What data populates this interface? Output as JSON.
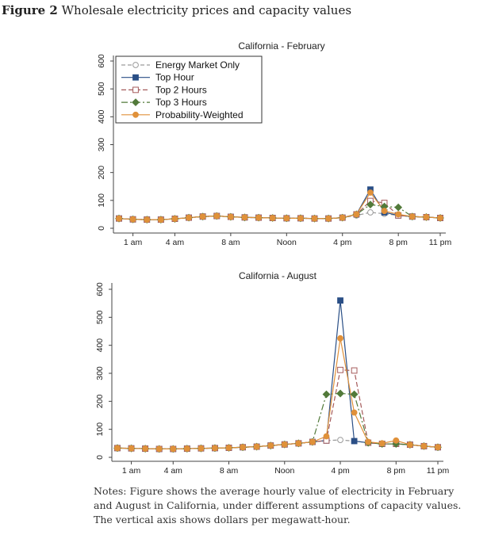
{
  "figure": {
    "label": "Figure 2",
    "title": "Wholesale electricity prices and capacity values"
  },
  "notes": "Notes: Figure shows the average hourly value of electricity in February and August in California, under different assumptions of capacity values. The vertical axis shows dollars per megawatt-hour.",
  "colors": {
    "energy": "#9a9a9a",
    "top1": "#2a4f86",
    "top2": "#a55b5b",
    "top3": "#527a3a",
    "prob": "#e0913a",
    "axis": "#444444"
  },
  "chart_data": [
    {
      "type": "line",
      "title": "California - February",
      "xlabel": "",
      "ylabel": "",
      "x": [
        1,
        2,
        3,
        4,
        5,
        6,
        7,
        8,
        9,
        10,
        11,
        12,
        13,
        14,
        15,
        16,
        17,
        18,
        19,
        20,
        21,
        22,
        23,
        24
      ],
      "x_ticks": [
        {
          "x": 2,
          "label": "1 am"
        },
        {
          "x": 5,
          "label": "4 am"
        },
        {
          "x": 9,
          "label": "8 am"
        },
        {
          "x": 13,
          "label": "Noon"
        },
        {
          "x": 17,
          "label": "4 pm"
        },
        {
          "x": 21,
          "label": "8 pm"
        },
        {
          "x": 24,
          "label": "11 pm"
        }
      ],
      "y_ticks": [
        0,
        100,
        200,
        300,
        400,
        500,
        600
      ],
      "ylim": [
        0,
        600
      ],
      "legend": "top-left",
      "series": [
        {
          "name": "Energy Market Only",
          "key": "energy",
          "marker": "circle-open",
          "values": [
            35,
            32,
            31,
            31,
            34,
            38,
            42,
            44,
            41,
            39,
            38,
            37,
            36,
            36,
            35,
            35,
            38,
            46,
            57,
            52,
            46,
            42,
            40,
            37
          ]
        },
        {
          "name": "Top Hour",
          "key": "top1",
          "marker": "square",
          "values": [
            35,
            32,
            31,
            31,
            34,
            38,
            42,
            44,
            41,
            39,
            38,
            37,
            36,
            36,
            35,
            35,
            38,
            50,
            139,
            57,
            46,
            42,
            40,
            37
          ]
        },
        {
          "name": "Top 2 Hours",
          "key": "top2",
          "marker": "square-open",
          "values": [
            35,
            32,
            31,
            31,
            34,
            38,
            42,
            44,
            41,
            39,
            38,
            37,
            36,
            36,
            35,
            35,
            38,
            50,
            98,
            91,
            46,
            42,
            40,
            37
          ]
        },
        {
          "name": "Top 3 Hours",
          "key": "top3",
          "marker": "diamond",
          "values": [
            35,
            32,
            31,
            31,
            34,
            38,
            42,
            44,
            41,
            39,
            38,
            37,
            36,
            36,
            35,
            35,
            38,
            50,
            85,
            78,
            75,
            42,
            40,
            37
          ]
        },
        {
          "name": "Probability-Weighted",
          "key": "prob",
          "marker": "circle",
          "values": [
            35,
            32,
            31,
            31,
            34,
            38,
            42,
            44,
            41,
            39,
            38,
            37,
            36,
            36,
            35,
            35,
            38,
            50,
            128,
            62,
            50,
            42,
            40,
            37
          ]
        }
      ]
    },
    {
      "type": "line",
      "title": "California - August",
      "xlabel": "",
      "ylabel": "",
      "x": [
        1,
        2,
        3,
        4,
        5,
        6,
        7,
        8,
        9,
        10,
        11,
        12,
        13,
        14,
        15,
        16,
        17,
        18,
        19,
        20,
        21,
        22,
        23,
        24
      ],
      "x_ticks": [
        {
          "x": 2,
          "label": "1 am"
        },
        {
          "x": 5,
          "label": "4 am"
        },
        {
          "x": 9,
          "label": "8 am"
        },
        {
          "x": 13,
          "label": "Noon"
        },
        {
          "x": 17,
          "label": "4 pm"
        },
        {
          "x": 21,
          "label": "8 pm"
        },
        {
          "x": 24,
          "label": "11 pm"
        }
      ],
      "y_ticks": [
        0,
        100,
        200,
        300,
        400,
        500,
        600
      ],
      "ylim": [
        0,
        600
      ],
      "series": [
        {
          "name": "Energy Market Only",
          "key": "energy",
          "marker": "circle-open",
          "values": [
            33,
            32,
            31,
            30,
            30,
            31,
            32,
            33,
            34,
            36,
            38,
            42,
            46,
            50,
            55,
            60,
            62,
            58,
            52,
            48,
            48,
            45,
            40,
            36
          ]
        },
        {
          "name": "Top Hour",
          "key": "top1",
          "marker": "square",
          "values": [
            33,
            32,
            31,
            30,
            30,
            31,
            32,
            33,
            34,
            36,
            38,
            42,
            46,
            50,
            55,
            60,
            560,
            58,
            52,
            48,
            48,
            45,
            40,
            36
          ]
        },
        {
          "name": "Top 2 Hours",
          "key": "top2",
          "marker": "square-open",
          "values": [
            33,
            32,
            31,
            30,
            30,
            31,
            32,
            33,
            34,
            36,
            38,
            42,
            46,
            50,
            55,
            60,
            312,
            310,
            52,
            48,
            48,
            45,
            40,
            36
          ]
        },
        {
          "name": "Top 3 Hours",
          "key": "top3",
          "marker": "diamond",
          "values": [
            33,
            32,
            31,
            30,
            30,
            31,
            32,
            33,
            34,
            36,
            38,
            42,
            46,
            50,
            55,
            225,
            228,
            225,
            52,
            48,
            48,
            45,
            40,
            36
          ]
        },
        {
          "name": "Probability-Weighted",
          "key": "prob",
          "marker": "circle",
          "values": [
            33,
            32,
            31,
            30,
            30,
            31,
            32,
            33,
            34,
            36,
            38,
            42,
            46,
            50,
            55,
            75,
            425,
            160,
            55,
            50,
            60,
            45,
            40,
            36
          ]
        }
      ]
    }
  ]
}
